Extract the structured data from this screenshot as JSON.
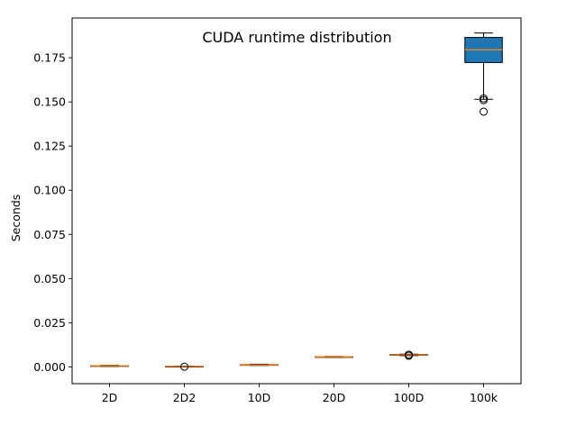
{
  "chart_data": {
    "type": "box",
    "title": "CUDA runtime distribution",
    "xlabel": "",
    "ylabel": "Seconds",
    "ylim": [
      -0.0095,
      0.1975
    ],
    "yticks": [
      0.0,
      0.025,
      0.05,
      0.075,
      0.1,
      0.125,
      0.15,
      0.175
    ],
    "ytick_labels": [
      "0.000",
      "0.025",
      "0.050",
      "0.075",
      "0.100",
      "0.125",
      "0.150",
      "0.175"
    ],
    "grid": false,
    "legend": "none",
    "colors": {
      "box_fill": "#1f77b4",
      "median": "#ff7f0e",
      "edge": "#000000"
    },
    "categories": [
      "2D",
      "2D2",
      "10D",
      "20D",
      "100D",
      "100k"
    ],
    "boxes": [
      {
        "label": "2D",
        "whisker_low": 0.0003,
        "q1": 0.0005,
        "median": 0.0006,
        "q3": 0.0007,
        "whisker_high": 0.0009,
        "outliers": []
      },
      {
        "label": "2D2",
        "whisker_low": 0.0,
        "q1": 0.0001,
        "median": 0.0002,
        "q3": 0.0003,
        "whisker_high": 0.0004,
        "outliers": [
          0.0001
        ]
      },
      {
        "label": "10D",
        "whisker_low": 0.0008,
        "q1": 0.001,
        "median": 0.0011,
        "q3": 0.0013,
        "whisker_high": 0.0015,
        "outliers": []
      },
      {
        "label": "20D",
        "whisker_low": 0.0054,
        "q1": 0.0055,
        "median": 0.0057,
        "q3": 0.0058,
        "whisker_high": 0.0059,
        "outliers": []
      },
      {
        "label": "100D",
        "whisker_low": 0.0064,
        "q1": 0.0066,
        "median": 0.0068,
        "q3": 0.007,
        "whisker_high": 0.0072,
        "outliers": [
          0.0063,
          0.0069
        ]
      },
      {
        "label": "100k",
        "whisker_low": 0.1515,
        "q1": 0.1723,
        "median": 0.1795,
        "q3": 0.1865,
        "whisker_high": 0.189,
        "outliers": [
          0.152,
          0.151,
          0.1445
        ]
      }
    ]
  }
}
